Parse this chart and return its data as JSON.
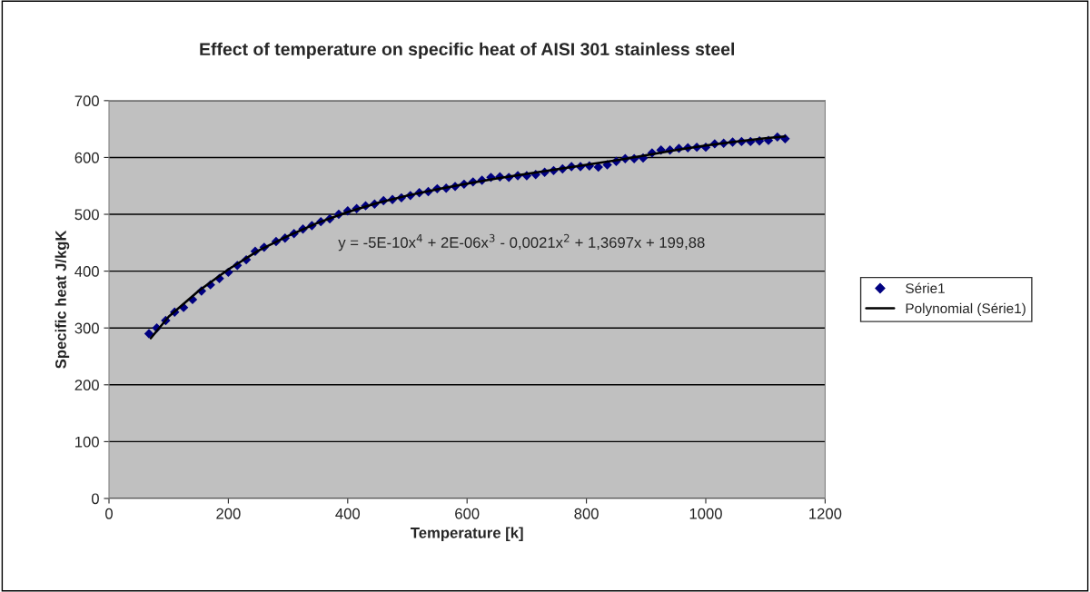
{
  "chart_data": {
    "type": "scatter",
    "title": "Effect of temperature on specific heat of AISI 301 stainless steel",
    "xlabel": "Temperature [k]",
    "ylabel": "Specific heat J/kgK",
    "xlim": [
      0,
      1200
    ],
    "xticks": [
      0,
      200,
      400,
      600,
      800,
      1000,
      1200
    ],
    "ylim": [
      0,
      700
    ],
    "yticks": [
      0,
      100,
      200,
      300,
      400,
      500,
      600,
      700
    ],
    "grid": "y",
    "legend": "right",
    "annotations": [
      "y = -5E-10x$^{4}$ + 2E-06x$^{3}$ - 0,0021x$^{2}$ + 1,3697x + 199,88"
    ],
    "series": [
      {
        "name": "Série1",
        "marker": "diamond",
        "color": "#000080",
        "x": [
          67,
          80,
          95,
          110,
          125,
          140,
          155,
          170,
          185,
          200,
          215,
          230,
          245,
          260,
          280,
          295,
          310,
          325,
          340,
          355,
          370,
          385,
          400,
          415,
          430,
          445,
          460,
          475,
          490,
          505,
          520,
          535,
          550,
          565,
          580,
          595,
          610,
          625,
          640,
          655,
          670,
          685,
          700,
          715,
          730,
          745,
          760,
          775,
          790,
          805,
          820,
          835,
          850,
          865,
          880,
          895,
          910,
          925,
          940,
          955,
          970,
          985,
          1000,
          1015,
          1030,
          1045,
          1060,
          1075,
          1090,
          1105,
          1120,
          1133
        ],
        "values": [
          290,
          300,
          313,
          328,
          336,
          350,
          365,
          376,
          387,
          398,
          410,
          420,
          435,
          442,
          452,
          458,
          466,
          474,
          480,
          487,
          492,
          500,
          506,
          510,
          515,
          518,
          524,
          526,
          529,
          533,
          538,
          540,
          545,
          546,
          549,
          553,
          557,
          560,
          565,
          566,
          565,
          568,
          568,
          570,
          574,
          577,
          580,
          584,
          584,
          585,
          583,
          587,
          593,
          598,
          598,
          599,
          608,
          613,
          613,
          616,
          617,
          618,
          618,
          624,
          625,
          627,
          628,
          628,
          629,
          630,
          636,
          633
        ]
      },
      {
        "name": "Polynomial (Série1)",
        "type": "line",
        "marker": "none",
        "color": "#000000",
        "line_style": "solid",
        "x": [
          70,
          100,
          150,
          200,
          250,
          300,
          350,
          400,
          450,
          500,
          550,
          600,
          650,
          700,
          750,
          800,
          850,
          900,
          950,
          1000,
          1050,
          1100,
          1133
        ],
        "values": [
          282,
          320,
          365,
          403,
          436,
          462,
          485,
          504,
          520,
          533,
          544,
          554,
          563,
          571,
          579,
          587,
          595,
          604,
          613,
          621,
          628,
          634,
          637
        ]
      }
    ]
  }
}
